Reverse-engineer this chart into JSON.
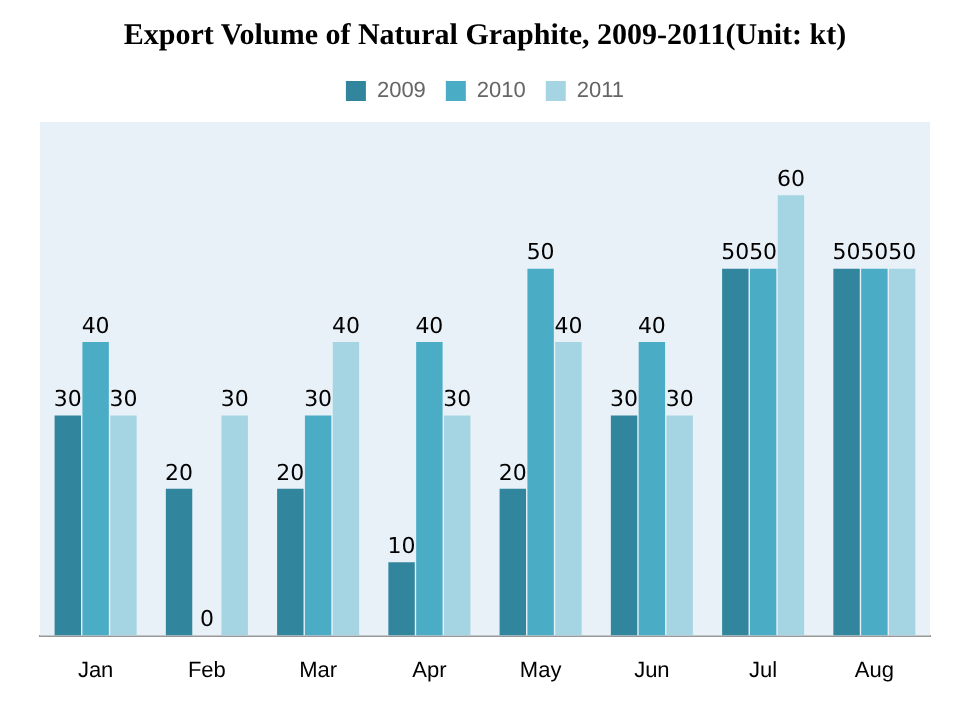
{
  "chart_data": {
    "type": "bar",
    "title": "Export Volume of Natural Graphite, 2009-2011(Unit: kt)",
    "categories": [
      "Jan",
      "Feb",
      "Mar",
      "Apr",
      "May",
      "Jun",
      "Jul",
      "Aug"
    ],
    "series": [
      {
        "name": "2009",
        "color": "#31859c",
        "values": [
          30,
          20,
          20,
          10,
          20,
          30,
          50,
          50
        ]
      },
      {
        "name": "2010",
        "color": "#4bacc6",
        "values": [
          40,
          0,
          30,
          40,
          50,
          40,
          50,
          50
        ]
      },
      {
        "name": "2011",
        "color": "#a5d5e2",
        "values": [
          30,
          30,
          40,
          30,
          40,
          30,
          60,
          50
        ]
      }
    ],
    "data_labels": true,
    "legend": "top",
    "grid": false
  }
}
